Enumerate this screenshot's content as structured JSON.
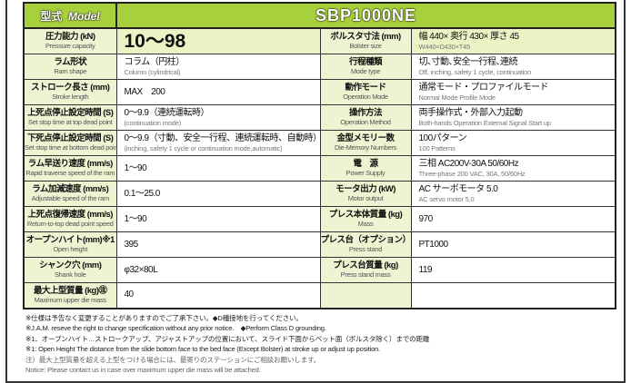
{
  "header": {
    "label_ja": "型式",
    "label_en": "Model",
    "model": "SBP1000NE"
  },
  "rows": [
    {
      "l": {
        "ja": "圧力能力 (kN)",
        "en": "Pressure capacity"
      },
      "lv": {
        "ja": "10〜98",
        "en": ""
      },
      "r": {
        "ja": "ボルスタ寸法 (mm)",
        "en": "Bolster size"
      },
      "rv": {
        "ja": "幅 440× 奥行 430× 厚さ 45",
        "en": "W440×D430×T45"
      }
    },
    {
      "l": {
        "ja": "ラム形状",
        "en": "Ram shape"
      },
      "lv": {
        "ja": "コラム（円柱）",
        "en": "Column (cylindrical)"
      },
      "r": {
        "ja": "行程種類",
        "en": "Mode type"
      },
      "rv": {
        "ja": "切､寸動､安全一行程､連続",
        "en": "Off, inching, safety 1 cycle, continuation"
      }
    },
    {
      "l": {
        "ja": "ストローク長さ (mm)",
        "en": "Stroke length"
      },
      "lv": {
        "ja": "MAX　200",
        "en": ""
      },
      "r": {
        "ja": "動作モード",
        "en": "Operation Mode"
      },
      "rv": {
        "ja": "通常モード・プロファイルモード",
        "en": "Normal Mode  Profile Mode"
      }
    },
    {
      "l": {
        "ja": "上死点停止設定時間 (S)",
        "en": "Set stop time at top dead point"
      },
      "lv": {
        "ja": "0〜9.9（連続運転時）",
        "en": "(continuation mode)"
      },
      "r": {
        "ja": "操作方法",
        "en": "Operation Method"
      },
      "rv": {
        "ja": "両手操作式・外部入力起動",
        "en": "Both-hands Operation  External Signal Start up"
      }
    },
    {
      "l": {
        "ja": "下死点停止設定時間 (S)",
        "en": "Set stop time at bottom dead point"
      },
      "lv": {
        "ja": "0〜9.9（寸動、安全一行程、連続運転時、自動時）",
        "en": "(inching, safety 1 cycle or continuation mode,automatic)"
      },
      "r": {
        "ja": "金型メモリー数",
        "en": "Die-Memory Numbers"
      },
      "rv": {
        "ja": "100パターン",
        "en": "100 Patterns"
      }
    },
    {
      "l": {
        "ja": "ラム早送り速度 (mm/s)",
        "en": "Rapid traverse speed of the ram"
      },
      "lv": {
        "ja": "1〜90",
        "en": ""
      },
      "r": {
        "ja": "電　源",
        "en": "Power Supply"
      },
      "rv": {
        "ja": "三相 AC200V-30A 50/60Hz",
        "en": "Three-phase 200 VAC, 30A, 50/60Hz"
      }
    },
    {
      "l": {
        "ja": "ラム加減速度 (mm/s)",
        "en": "Adjustable speed of the ram"
      },
      "lv": {
        "ja": "0.1〜25.0",
        "en": ""
      },
      "r": {
        "ja": "モータ出力 (kW)",
        "en": "Motor output"
      },
      "rv": {
        "ja": "AC サーボモータ 5.0",
        "en": "AC servo motor 5.0"
      }
    },
    {
      "l": {
        "ja": "上死点復帰速度 (mm/s)",
        "en": "Return-to-top dead point speed"
      },
      "lv": {
        "ja": "1〜90",
        "en": ""
      },
      "r": {
        "ja": "プレス本体質量 (kg)",
        "en": "Mass"
      },
      "rv": {
        "ja": "970",
        "en": ""
      }
    },
    {
      "l": {
        "ja": "オープンハイト(mm)※1",
        "en": "Open height"
      },
      "lv": {
        "ja": "395",
        "en": ""
      },
      "r": {
        "ja": "プレス台（オプション）",
        "en": "Press  stand"
      },
      "rv": {
        "ja": "PT1000",
        "en": ""
      }
    },
    {
      "l": {
        "ja": "シャンク穴 (mm)",
        "en": "Shank hole"
      },
      "lv": {
        "ja": "φ32×80L",
        "en": ""
      },
      "r": {
        "ja": "プレス台質量 (kg)",
        "en": "Press  stand mass"
      },
      "rv": {
        "ja": "119",
        "en": ""
      }
    },
    {
      "l": {
        "ja": "最大上型質量 (kg)㊟",
        "en": "Maximum upper die mass"
      },
      "lv": {
        "ja": "40",
        "en": ""
      },
      "r": {
        "ja": "",
        "en": ""
      },
      "rv": {
        "ja": "",
        "en": ""
      }
    }
  ],
  "notes": [
    "※仕様は予告なく変更することがありますのでご了承下さい。◆D種接地を行ってください。",
    "※J.A.M. reseve the right to change specification without any prior notice.　◆Perform Class D grounding.",
    "※1．オープンハイト…ストロークアップ、アジャストアップの位置において、スライド下面からベット面（ボルスタ除く）までの距離",
    "※1: Open Height  The distance from the slide bottom face to the bed face (Except Bolster) at stroke up or adjust up position.",
    "注）最大上型質量を超える上型をつける場合には、最寄りのステーションにご相談お願いします。",
    "Notice: Please contact us in case over maximum upper die mass will be attached."
  ]
}
